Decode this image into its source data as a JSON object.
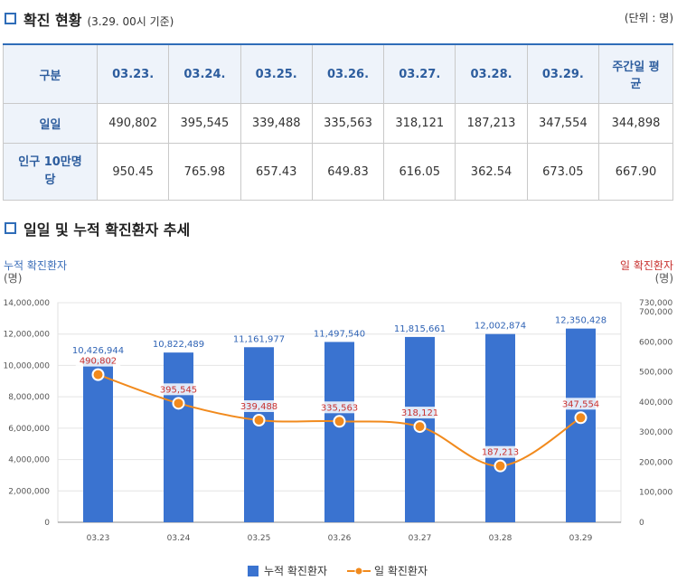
{
  "section1": {
    "title": "확진 현황",
    "subtitle": "(3.29. 00시 기준)"
  },
  "unit": "(단위 : 명)",
  "table": {
    "headers": [
      "구분",
      "03.23.",
      "03.24.",
      "03.25.",
      "03.26.",
      "03.27.",
      "03.28.",
      "03.29.",
      "주간일 평균"
    ],
    "rows": [
      {
        "label": "일일",
        "values": [
          "490,802",
          "395,545",
          "339,488",
          "335,563",
          "318,121",
          "187,213",
          "347,554",
          "344,898"
        ]
      },
      {
        "label": "인구 10만명당",
        "values": [
          "950.45",
          "765.98",
          "657.43",
          "649.83",
          "616.05",
          "362.54",
          "673.05",
          "667.90"
        ]
      }
    ]
  },
  "section2": {
    "title": "일일 및 누적 확진환자 추세"
  },
  "chart_data": {
    "type": "bar",
    "title": "일일 및 누적 확진환자 추세",
    "categories": [
      "03.23",
      "03.24",
      "03.25",
      "03.26",
      "03.27",
      "03.28",
      "03.29"
    ],
    "left_axis": {
      "label": "누적 확진환자",
      "unit": "(명)",
      "ylim": [
        0,
        14000000
      ],
      "ticks": [
        "0",
        "2,000,000",
        "4,000,000",
        "6,000,000",
        "8,000,000",
        "10,000,000",
        "12,000,000",
        "14,000,000"
      ]
    },
    "right_axis": {
      "label": "일 확진환자",
      "unit": "(명)",
      "ylim": [
        0,
        730000
      ],
      "ticks": [
        "0",
        "100,000",
        "200,000",
        "300,000",
        "400,000",
        "500,000",
        "600,000",
        "700,000",
        "730,000"
      ]
    },
    "series": [
      {
        "name": "누적 확진환자",
        "type": "bar",
        "axis": "left",
        "color": "#3a73d0",
        "values": [
          10426944,
          10822489,
          11161977,
          11497540,
          11815661,
          12002874,
          12350428
        ],
        "labels": [
          "10,426,944",
          "10,822,489",
          "11,161,977",
          "11,497,540",
          "11,815,661",
          "12,002,874",
          "12,350,428"
        ]
      },
      {
        "name": "일 확진환자",
        "type": "line",
        "axis": "right",
        "color": "#f18a1d",
        "label_color": "#c8312f",
        "values": [
          490802,
          395545,
          339488,
          335563,
          318121,
          187213,
          347554
        ],
        "labels": [
          "490,802",
          "395,545",
          "339,488",
          "335,563",
          "318,121",
          "187,213",
          "347,554"
        ]
      }
    ],
    "legend": [
      "누적 확진환자",
      "일 확진환자"
    ],
    "grid": true
  }
}
